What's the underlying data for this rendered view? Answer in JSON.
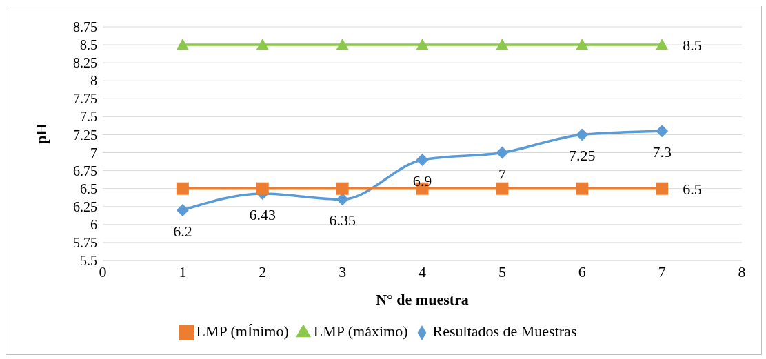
{
  "chart_data": {
    "type": "line",
    "xlabel": "N° de muestra",
    "ylabel": "pH",
    "x": [
      1,
      2,
      3,
      4,
      5,
      6,
      7
    ],
    "series": [
      {
        "name": "Resultados de Muestras",
        "color": "#5b9bd5",
        "marker": "diamond",
        "values": [
          6.2,
          6.43,
          6.35,
          6.9,
          7,
          7.25,
          7.3
        ],
        "value_labels": [
          "6.2",
          "6.43",
          "6.35",
          "6.9",
          "7",
          "7.25",
          "7.3"
        ]
      },
      {
        "name": "LMP (mÍnimo)",
        "color": "#ed7d31",
        "marker": "square",
        "values": [
          6.5,
          6.5,
          6.5,
          6.5,
          6.5,
          6.5,
          6.5
        ],
        "value_labels": [
          null,
          null,
          null,
          null,
          null,
          null,
          "6.5"
        ]
      },
      {
        "name": "LMP (máximo)",
        "color": "#8cc84b",
        "marker": "triangle",
        "values": [
          8.5,
          8.5,
          8.5,
          8.5,
          8.5,
          8.5,
          8.5
        ],
        "value_labels": [
          null,
          null,
          null,
          null,
          null,
          null,
          "8.5"
        ]
      }
    ],
    "xlim": [
      0,
      8
    ],
    "xticks": [
      0,
      1,
      2,
      3,
      4,
      5,
      6,
      7,
      8
    ],
    "ylim": [
      5.5,
      8.75
    ],
    "yticks": [
      5.5,
      5.75,
      6,
      6.25,
      6.5,
      6.75,
      7,
      7.25,
      7.5,
      7.75,
      8,
      8.25,
      8.5,
      8.75
    ],
    "grid": "y",
    "legend": "bottom"
  }
}
